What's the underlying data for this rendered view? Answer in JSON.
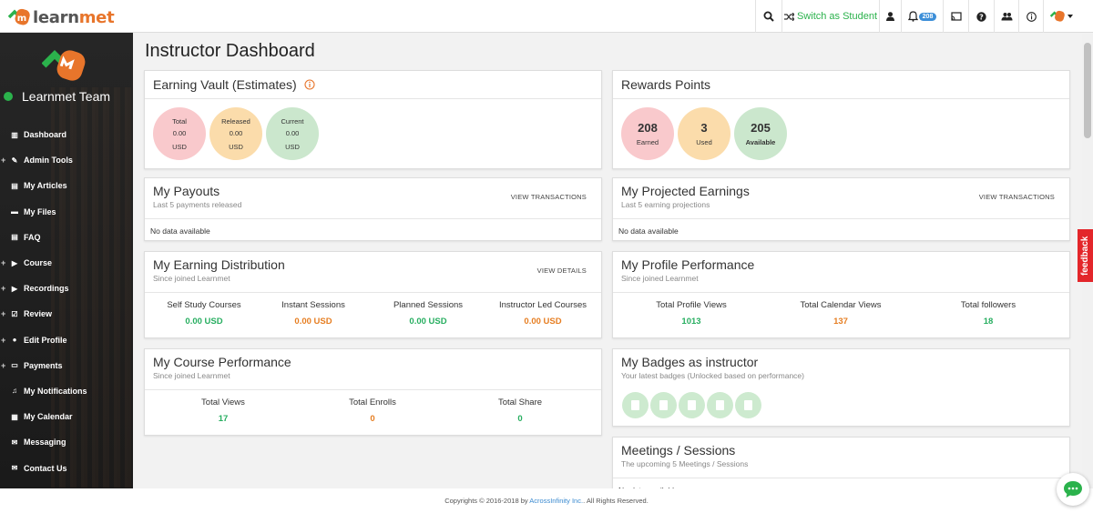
{
  "brand": {
    "logo_text_prefix": "learn",
    "logo_text_suffix": "met"
  },
  "topbar": {
    "switch_label": "Switch as Student",
    "notification_count": "208",
    "accent": "#2bb24c"
  },
  "sidebar": {
    "user_name": "Learnmet Team",
    "items": [
      {
        "label": "Dashboard",
        "icon": "bar-chart-icon",
        "expandable": false
      },
      {
        "label": "Admin Tools",
        "icon": "wrench-icon",
        "expandable": true
      },
      {
        "label": "My Articles",
        "icon": "newspaper-icon",
        "expandable": false
      },
      {
        "label": "My Files",
        "icon": "folder-icon",
        "expandable": false
      },
      {
        "label": "FAQ",
        "icon": "newspaper-icon",
        "expandable": false
      },
      {
        "label": "Course",
        "icon": "video-icon",
        "expandable": true
      },
      {
        "label": "Recordings",
        "icon": "play-icon",
        "expandable": true
      },
      {
        "label": "Review",
        "icon": "check-square-icon",
        "expandable": true
      },
      {
        "label": "Edit Profile",
        "icon": "user-icon",
        "expandable": true
      },
      {
        "label": "Payments",
        "icon": "money-icon",
        "expandable": true
      },
      {
        "label": "My Notifications",
        "icon": "bell-icon",
        "expandable": false
      },
      {
        "label": "My Calendar",
        "icon": "calendar-icon",
        "expandable": false
      },
      {
        "label": "Messaging",
        "icon": "envelope-icon",
        "expandable": false
      },
      {
        "label": "Contact Us",
        "icon": "envelope-icon",
        "expandable": false
      }
    ]
  },
  "page": {
    "title": "Instructor Dashboard"
  },
  "earning_vault": {
    "title": "Earning Vault (Estimates)",
    "items": [
      {
        "label": "Total",
        "value": "0.00",
        "unit": "USD",
        "color": "#f9c9cc"
      },
      {
        "label": "Released",
        "value": "0.00",
        "unit": "USD",
        "color": "#fbdcab"
      },
      {
        "label": "Current",
        "value": "0.00",
        "unit": "USD",
        "color": "#cbe7cd"
      }
    ]
  },
  "rewards": {
    "title": "Rewards Points",
    "items": [
      {
        "value": "208",
        "label": "Earned",
        "color": "#f9c9cc"
      },
      {
        "value": "3",
        "label": "Used",
        "color": "#fbdcab"
      },
      {
        "value": "205",
        "label": "Available",
        "color": "#cbe7cd"
      }
    ]
  },
  "payouts": {
    "title": "My Payouts",
    "subtitle": "Last 5 payments released",
    "action": "VIEW TRANSACTIONS",
    "empty": "No data available"
  },
  "projected": {
    "title": "My Projected Earnings",
    "subtitle": "Last 5 earning projections",
    "action": "VIEW TRANSACTIONS",
    "empty": "No data available"
  },
  "distribution": {
    "title": "My Earning Distribution",
    "subtitle": "Since joined Learnmet",
    "action": "VIEW DETAILS",
    "stats": [
      {
        "label": "Self Study Courses",
        "value": "0.00 USD",
        "tone": "green"
      },
      {
        "label": "Instant Sessions",
        "value": "0.00 USD",
        "tone": "orange"
      },
      {
        "label": "Planned Sessions",
        "value": "0.00 USD",
        "tone": "green"
      },
      {
        "label": "Instructor Led Courses",
        "value": "0.00 USD",
        "tone": "orange"
      }
    ]
  },
  "profile_perf": {
    "title": "My Profile Performance",
    "subtitle": "Since joined Learnmet",
    "stats": [
      {
        "label": "Total Profile Views",
        "value": "1013",
        "tone": "green"
      },
      {
        "label": "Total Calendar Views",
        "value": "137",
        "tone": "orange"
      },
      {
        "label": "Total followers",
        "value": "18",
        "tone": "green"
      }
    ]
  },
  "course_perf": {
    "title": "My Course Performance",
    "subtitle": "Since joined Learnmet",
    "stats": [
      {
        "label": "Total Views",
        "value": "17",
        "tone": "green"
      },
      {
        "label": "Total Enrolls",
        "value": "0",
        "tone": "orange"
      },
      {
        "label": "Total Share",
        "value": "0",
        "tone": "green"
      }
    ]
  },
  "badges": {
    "title": "My Badges as instructor",
    "subtitle": "Your latest badges (Unlocked based on performance)",
    "count": 5,
    "icon": "file-badge-icon"
  },
  "meetings": {
    "title": "Meetings / Sessions",
    "subtitle": "The upcoming 5 Meetings / Sessions",
    "empty": "No data available"
  },
  "footer": {
    "prefix": "Copyrights © 2016-2018 by ",
    "company": "AcrossInfinity Inc.",
    "suffix": ". All Rights Reserved."
  },
  "feedback_label": "feedback"
}
